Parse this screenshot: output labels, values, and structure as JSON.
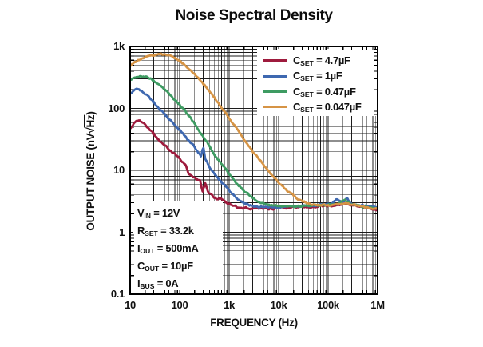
{
  "title": "Noise Spectral Density",
  "chart_data": {
    "type": "line",
    "title": "Noise Spectral Density",
    "xlabel": "FREQUENCY (Hz)",
    "ylabel": "OUTPUT NOISE (nV√Hz)",
    "ylabel_parts": {
      "pre": "OUTPUT NOISE (nV√",
      "over": "Hz",
      "post": ")"
    },
    "xscale": "log",
    "yscale": "log",
    "xlim": [
      10,
      1000000
    ],
    "ylim": [
      0.1,
      1000
    ],
    "grid": "log major+minor, black",
    "legend_position": "top-right",
    "x_ticks": [
      {
        "label": "10",
        "value": 10
      },
      {
        "label": "100",
        "value": 100
      },
      {
        "label": "1k",
        "value": 1000
      },
      {
        "label": "10k",
        "value": 10000
      },
      {
        "label": "100k",
        "value": 100000
      },
      {
        "label": "1M",
        "value": 1000000
      }
    ],
    "y_ticks": [
      {
        "label": "1k",
        "value": 1000
      },
      {
        "label": "100",
        "value": 100
      },
      {
        "label": "10",
        "value": 10
      },
      {
        "label": "1",
        "value": 1
      },
      {
        "label": "0.1",
        "value": 0.1
      }
    ],
    "series": [
      {
        "name": "CSET = 4.7µF",
        "label_parts": {
          "base": "C",
          "sub": "SET",
          "rest": " = 4.7µF"
        },
        "color": "#9E1B3D",
        "points": [
          [
            10,
            48
          ],
          [
            12,
            58
          ],
          [
            15,
            65
          ],
          [
            18,
            59
          ],
          [
            22,
            50
          ],
          [
            28,
            41
          ],
          [
            36,
            33
          ],
          [
            47,
            26
          ],
          [
            60,
            22
          ],
          [
            75,
            19
          ],
          [
            90,
            17
          ],
          [
            110,
            14
          ],
          [
            130,
            12.5
          ],
          [
            150,
            9
          ],
          [
            180,
            8
          ],
          [
            220,
            7
          ],
          [
            260,
            6.8
          ],
          [
            290,
            4.6
          ],
          [
            330,
            6.2
          ],
          [
            380,
            4.2
          ],
          [
            450,
            3.9
          ],
          [
            550,
            3.5
          ],
          [
            700,
            3.5
          ],
          [
            900,
            3.0
          ],
          [
            1200,
            2.7
          ],
          [
            1600,
            2.5
          ],
          [
            2200,
            2.45
          ],
          [
            3000,
            2.4
          ],
          [
            4500,
            2.45
          ],
          [
            6500,
            2.4
          ],
          [
            9000,
            2.45
          ],
          [
            13000,
            2.5
          ],
          [
            18000,
            2.5
          ],
          [
            26000,
            2.55
          ],
          [
            38000,
            2.5
          ],
          [
            55000,
            2.6
          ],
          [
            80000,
            2.6
          ],
          [
            110000,
            2.65
          ],
          [
            160000,
            2.75
          ],
          [
            230000,
            2.9
          ],
          [
            320000,
            2.7
          ],
          [
            450000,
            2.6
          ],
          [
            650000,
            2.45
          ],
          [
            1000000,
            2.3
          ]
        ]
      },
      {
        "name": "CSET = 1µF",
        "label_parts": {
          "base": "C",
          "sub": "SET",
          "rest": " = 1µF"
        },
        "color": "#3E68B0",
        "points": [
          [
            10,
            175
          ],
          [
            12,
            195
          ],
          [
            14,
            205
          ],
          [
            17,
            192
          ],
          [
            21,
            168
          ],
          [
            27,
            138
          ],
          [
            35,
            110
          ],
          [
            45,
            88
          ],
          [
            58,
            70
          ],
          [
            75,
            57
          ],
          [
            95,
            47
          ],
          [
            120,
            38
          ],
          [
            150,
            31
          ],
          [
            190,
            25
          ],
          [
            230,
            20
          ],
          [
            270,
            16.5
          ],
          [
            300,
            24
          ],
          [
            330,
            15
          ],
          [
            400,
            11.5
          ],
          [
            500,
            8.8
          ],
          [
            650,
            6.9
          ],
          [
            850,
            5.4
          ],
          [
            1100,
            4.3
          ],
          [
            1500,
            3.4
          ],
          [
            2000,
            2.95
          ],
          [
            2800,
            2.7
          ],
          [
            4000,
            2.6
          ],
          [
            6000,
            2.55
          ],
          [
            9000,
            2.5
          ],
          [
            13000,
            2.6
          ],
          [
            19000,
            2.65
          ],
          [
            28000,
            2.6
          ],
          [
            40000,
            2.7
          ],
          [
            60000,
            2.75
          ],
          [
            85000,
            2.8
          ],
          [
            120000,
            3.0
          ],
          [
            150000,
            3.4
          ],
          [
            190000,
            3.0
          ],
          [
            240000,
            3.5
          ],
          [
            300000,
            2.9
          ],
          [
            420000,
            2.75
          ],
          [
            600000,
            2.65
          ],
          [
            1000000,
            2.55
          ]
        ]
      },
      {
        "name": "CSET = 0.47µF",
        "label_parts": {
          "base": "C",
          "sub": "SET",
          "rest": " = 0.47µF"
        },
        "color": "#3E9B62",
        "points": [
          [
            10,
            285
          ],
          [
            13,
            315
          ],
          [
            17,
            330
          ],
          [
            22,
            318
          ],
          [
            28,
            290
          ],
          [
            36,
            252
          ],
          [
            46,
            210
          ],
          [
            60,
            172
          ],
          [
            78,
            140
          ],
          [
            100,
            115
          ],
          [
            130,
            90
          ],
          [
            170,
            68
          ],
          [
            220,
            51
          ],
          [
            280,
            38
          ],
          [
            360,
            28
          ],
          [
            460,
            20.5
          ],
          [
            580,
            15.5
          ],
          [
            740,
            12
          ],
          [
            950,
            9.2
          ],
          [
            1200,
            7.3
          ],
          [
            1600,
            5.6
          ],
          [
            2100,
            4.5
          ],
          [
            2800,
            3.8
          ],
          [
            3800,
            3.2
          ],
          [
            5200,
            2.9
          ],
          [
            7500,
            2.7
          ],
          [
            11000,
            2.6
          ],
          [
            16000,
            2.65
          ],
          [
            23000,
            2.6
          ],
          [
            33000,
            2.65
          ],
          [
            48000,
            2.7
          ],
          [
            70000,
            2.7
          ],
          [
            100000,
            2.75
          ],
          [
            150000,
            2.85
          ],
          [
            220000,
            3.3
          ],
          [
            280000,
            2.9
          ],
          [
            400000,
            2.65
          ],
          [
            600000,
            2.55
          ],
          [
            1000000,
            2.4
          ]
        ]
      },
      {
        "name": "CSET = 0.047µF",
        "label_parts": {
          "base": "C",
          "sub": "SET",
          "rest": " = 0.047µF"
        },
        "color": "#D69445",
        "points": [
          [
            10,
            480
          ],
          [
            13,
            565
          ],
          [
            17,
            635
          ],
          [
            23,
            690
          ],
          [
            30,
            725
          ],
          [
            40,
            748
          ],
          [
            52,
            745
          ],
          [
            65,
            715
          ],
          [
            80,
            660
          ],
          [
            100,
            590
          ],
          [
            125,
            510
          ],
          [
            160,
            430
          ],
          [
            200,
            360
          ],
          [
            260,
            290
          ],
          [
            330,
            230
          ],
          [
            420,
            180
          ],
          [
            540,
            140
          ],
          [
            700,
            105
          ],
          [
            900,
            78
          ],
          [
            1150,
            59
          ],
          [
            1500,
            44
          ],
          [
            1900,
            33
          ],
          [
            2500,
            25
          ],
          [
            3200,
            19
          ],
          [
            4200,
            14.5
          ],
          [
            5500,
            11
          ],
          [
            7200,
            8.5
          ],
          [
            9500,
            6.6
          ],
          [
            12500,
            5.3
          ],
          [
            16500,
            4.4
          ],
          [
            22000,
            3.7
          ],
          [
            29000,
            3.2
          ],
          [
            38000,
            2.95
          ],
          [
            52000,
            2.8
          ],
          [
            72000,
            2.75
          ],
          [
            100000,
            2.7
          ],
          [
            150000,
            2.8
          ],
          [
            220000,
            2.95
          ],
          [
            300000,
            2.8
          ],
          [
            430000,
            2.65
          ],
          [
            650000,
            2.5
          ],
          [
            1000000,
            2.4
          ]
        ]
      }
    ],
    "annotation": {
      "lines": [
        {
          "base": "V",
          "sub": "IN",
          "rest": " = 12V"
        },
        {
          "base": "R",
          "sub": "SET",
          "rest": " = 33.2k"
        },
        {
          "base": "I",
          "sub": "OUT",
          "rest": " = 500mA"
        },
        {
          "base": "C",
          "sub": "OUT",
          "rest": " = 10µF"
        },
        {
          "base": "I",
          "sub": "BUS",
          "rest": " = 0A"
        }
      ]
    }
  },
  "style_colors": {
    "grid": "#1c1c1c",
    "frame": "#000000",
    "background": "#ffffff"
  }
}
